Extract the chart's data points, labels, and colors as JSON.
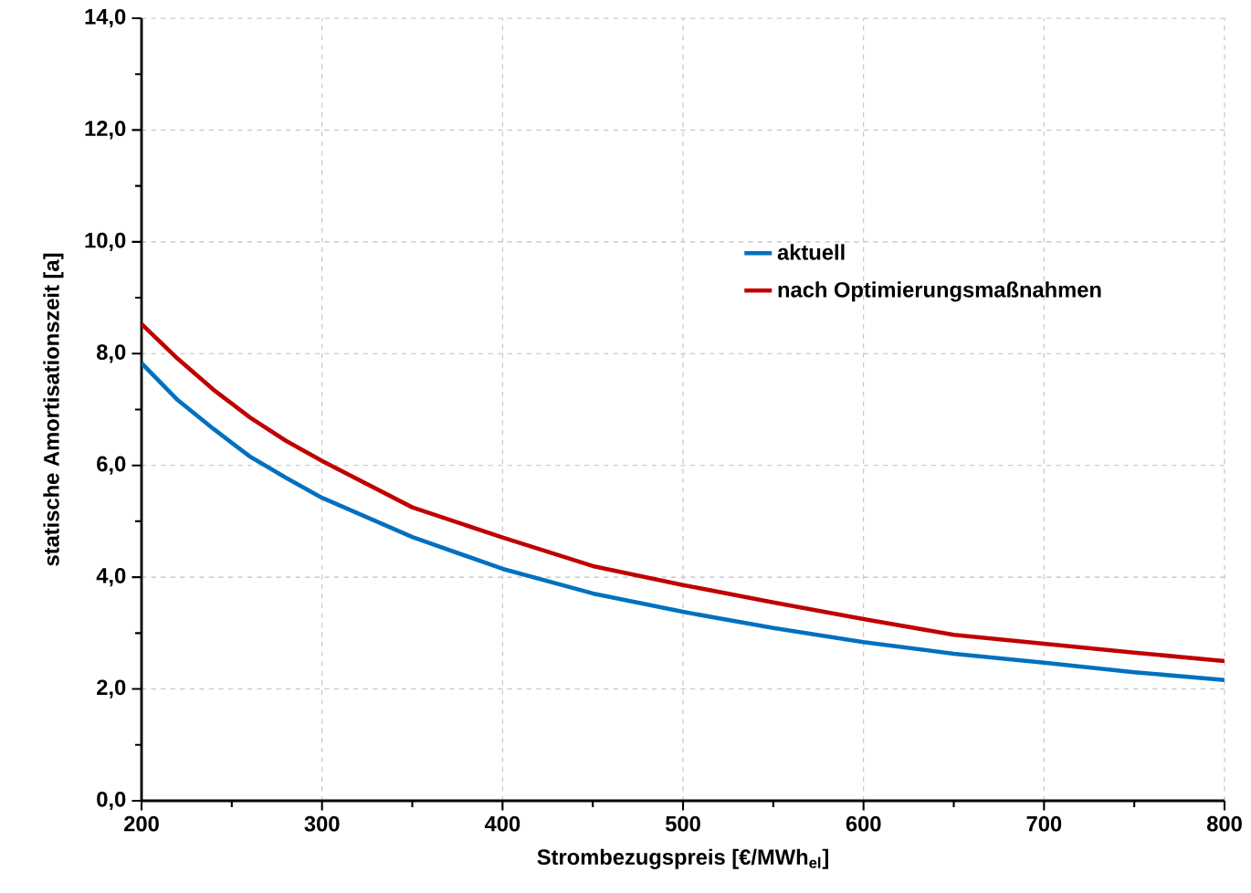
{
  "chart_data": {
    "type": "line",
    "xlabel": "Strombezugspreis [€/MWh$_{el}$]",
    "ylabel": "statische Amortisationszeit [a]",
    "x": [
      200,
      220,
      240,
      260,
      280,
      300,
      350,
      400,
      450,
      500,
      550,
      600,
      650,
      700,
      750,
      800
    ],
    "series": [
      {
        "name": "aktuell",
        "color": "#0070c0",
        "values": [
          7.83,
          7.17,
          6.65,
          6.16,
          5.78,
          5.42,
          4.72,
          4.15,
          3.71,
          3.38,
          3.09,
          2.84,
          2.63,
          2.47,
          2.3,
          2.16
        ]
      },
      {
        "name": "nach Optimierungsmaßnahmen",
        "color": "#c00000",
        "values": [
          8.53,
          7.91,
          7.35,
          6.86,
          6.44,
          6.08,
          5.25,
          4.71,
          4.2,
          3.86,
          3.55,
          3.25,
          2.97,
          2.81,
          2.65,
          2.5
        ]
      }
    ],
    "xlim": [
      200,
      800
    ],
    "ylim": [
      0,
      14
    ],
    "xticks": [
      200,
      300,
      400,
      500,
      600,
      700,
      800
    ],
    "yticks": [
      {
        "value": 0,
        "label": "0,0"
      },
      {
        "value": 2,
        "label": "2,0"
      },
      {
        "value": 4,
        "label": "4,0"
      },
      {
        "value": 6,
        "label": "6,0"
      },
      {
        "value": 8,
        "label": "8,0"
      },
      {
        "value": 10,
        "label": "10,0"
      },
      {
        "value": 12,
        "label": "12,0"
      },
      {
        "value": 14,
        "label": "14,0"
      }
    ],
    "grid": true,
    "legend": "right",
    "marker": "none",
    "line_style": "solid"
  }
}
